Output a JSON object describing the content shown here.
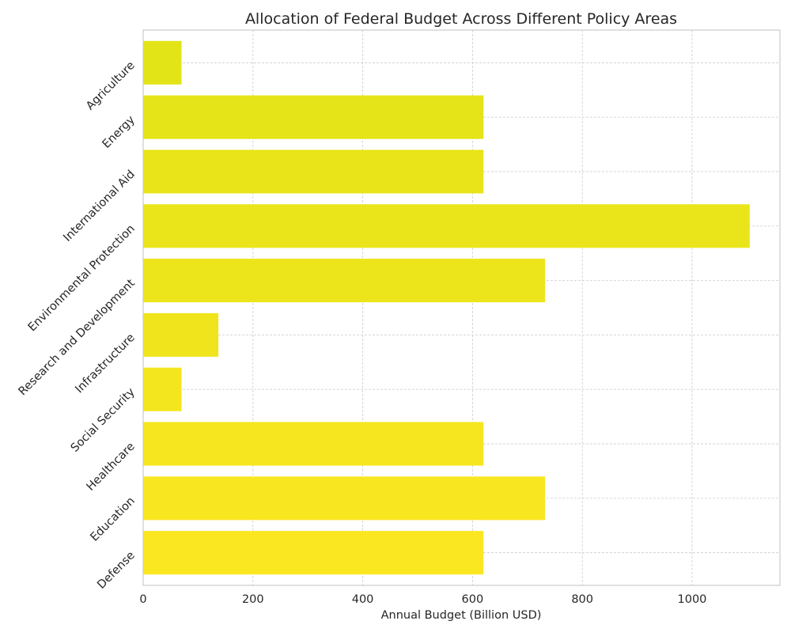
{
  "chart_data": {
    "type": "bar",
    "orientation": "horizontal",
    "title": "Allocation of Federal Budget Across Different Policy Areas",
    "xlabel": "Annual Budget (Billion USD)",
    "ylabel": "",
    "xlim": [
      0,
      1160
    ],
    "xticks": [
      0,
      200,
      400,
      600,
      800,
      1000
    ],
    "categories": [
      "Defense",
      "Education",
      "Healthcare",
      "Social Security",
      "Infrastructure",
      "Research and Development",
      "Environmental Protection",
      "International Aid",
      "Energy",
      "Agriculture"
    ],
    "values": [
      620,
      732,
      620,
      70,
      137,
      732,
      1105,
      620,
      620,
      70
    ],
    "colors": [
      "#fbe622",
      "#f8e621",
      "#f5e61f",
      "#f3e61e",
      "#f0e51c",
      "#ede51b",
      "#eae51a",
      "#e8e419",
      "#e5e418",
      "#e2e418"
    ],
    "grid": true,
    "legend": "none"
  }
}
